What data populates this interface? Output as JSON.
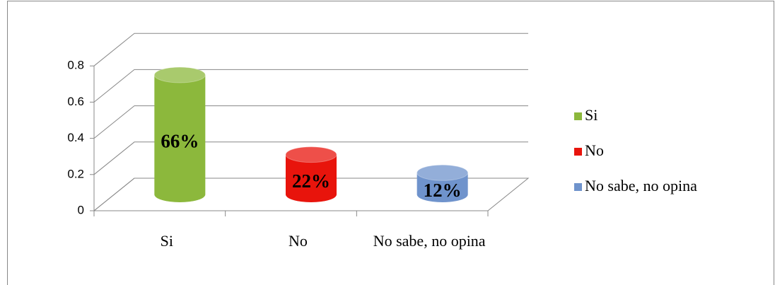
{
  "chart_data": {
    "type": "bar3d",
    "categories": [
      "Si",
      "No",
      "No sabe, no opina"
    ],
    "values": [
      0.66,
      0.22,
      0.12
    ],
    "value_labels": [
      "66%",
      "22%",
      "12%"
    ],
    "colors": [
      "#8cb83c",
      "#e8140c",
      "#6f93cc"
    ],
    "legend": "right",
    "ylim": [
      0,
      0.8
    ],
    "yticks": [
      0,
      0.2,
      0.4,
      0.6,
      0.8
    ],
    "grid": true
  }
}
